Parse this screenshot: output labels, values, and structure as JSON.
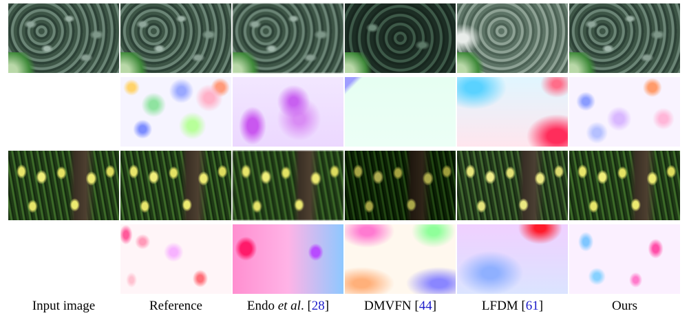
{
  "columns": [
    {
      "label": "Input image"
    },
    {
      "label": "Reference"
    },
    {
      "label_prefix": "Endo ",
      "label_em": "et al",
      "label_suffix": ". [",
      "cite": "28",
      "label_close": "]"
    },
    {
      "label_prefix": "DMVFN [",
      "cite": "44",
      "label_close": "]"
    },
    {
      "label_prefix": "LFDM [",
      "cite": "61",
      "label_close": "]"
    },
    {
      "label": "Ours"
    }
  ],
  "rows": [
    {
      "content": "ivy frames"
    },
    {
      "content": "ivy optical flow"
    },
    {
      "content": "tulip frames"
    },
    {
      "content": "tulip optical flow"
    }
  ],
  "colors": {
    "citation": "#1b1bc9"
  }
}
